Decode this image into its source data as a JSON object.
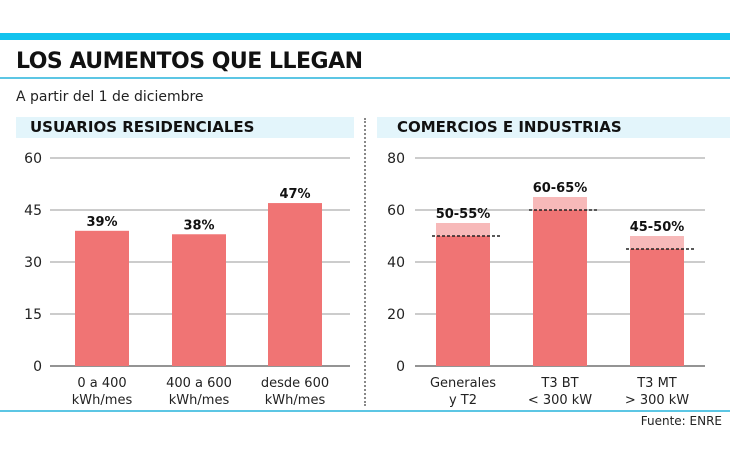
{
  "title": "LOS AUMENTOS QUE LLEGAN",
  "subtitle": "A partir del 1 de diciembre",
  "source": "Fuente: ENRE",
  "colors": {
    "accent": "#12c3ee",
    "bar": "#f07474",
    "bar_range": "#f7b9b9",
    "section_bg": "#e3f5fb"
  },
  "chart_data": [
    {
      "type": "bar",
      "title": "USUARIOS RESIDENCIALES",
      "categories": [
        [
          "0 a 400",
          "kWh/mes"
        ],
        [
          "400 a 600",
          "kWh/mes"
        ],
        [
          "desde 600",
          "kWh/mes"
        ]
      ],
      "values": [
        39,
        38,
        47
      ],
      "data_labels": [
        "39%",
        "38%",
        "47%"
      ],
      "ylim": [
        0,
        60
      ],
      "yticks": [
        0,
        15,
        30,
        45,
        60
      ],
      "grid": true
    },
    {
      "type": "bar",
      "title": "COMERCIOS E INDUSTRIAS",
      "categories": [
        [
          "Generales",
          "y T2"
        ],
        [
          "T3 BT",
          "< 300 kW"
        ],
        [
          "T3 MT",
          "> 300 kW"
        ]
      ],
      "ranges": [
        [
          50,
          55
        ],
        [
          60,
          65
        ],
        [
          45,
          50
        ]
      ],
      "data_labels": [
        "50-55%",
        "60-65%",
        "45-50%"
      ],
      "ylim": [
        0,
        80
      ],
      "yticks": [
        0,
        20,
        40,
        60,
        80
      ],
      "grid": true
    }
  ]
}
